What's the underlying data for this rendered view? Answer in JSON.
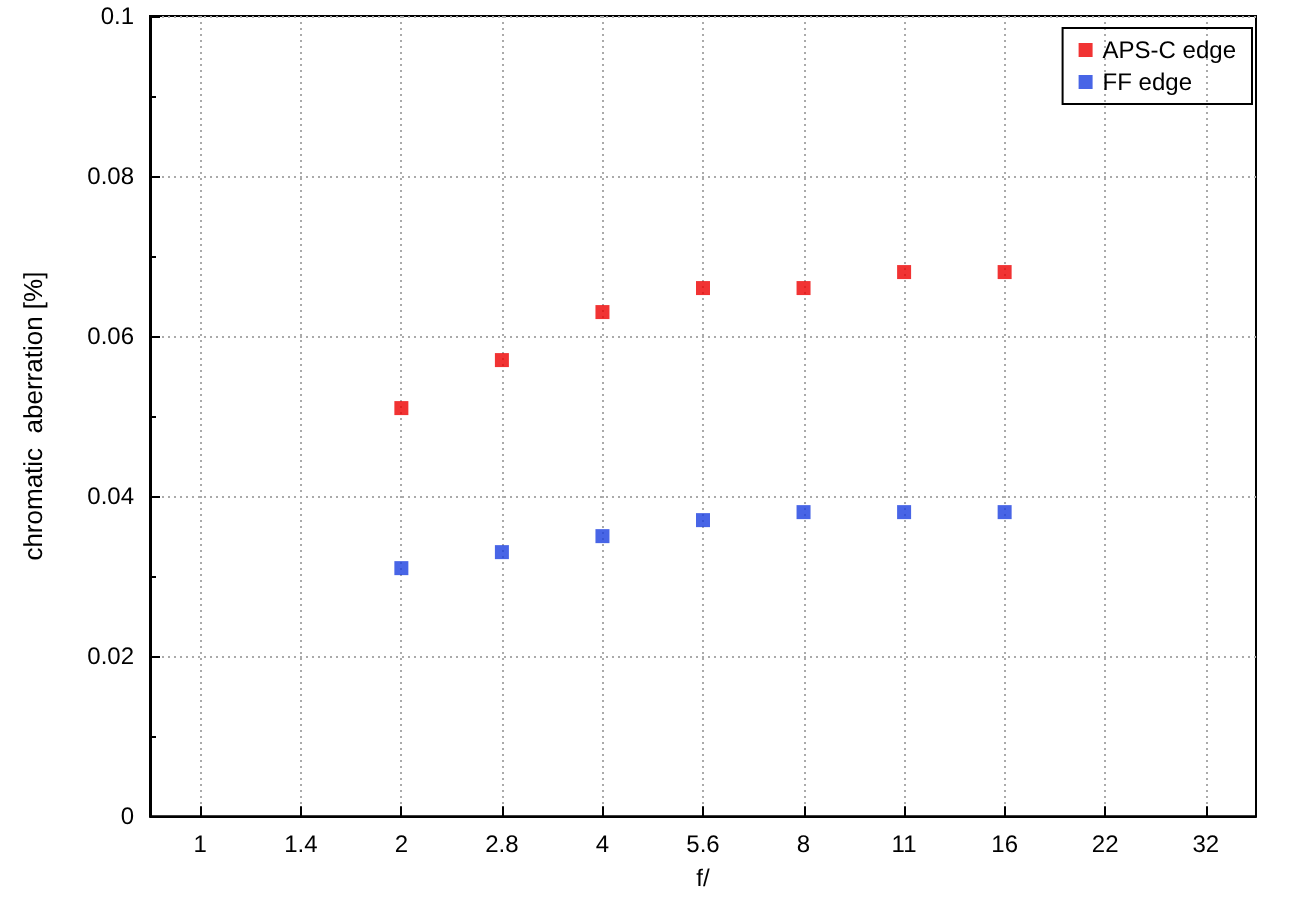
{
  "chart_data": {
    "type": "scatter",
    "xlabel": "f/",
    "ylabel": "chromatic  aberration [%]",
    "categories": [
      "1",
      "1.4",
      "2",
      "2.8",
      "4",
      "5.6",
      "8",
      "11",
      "16",
      "22",
      "32"
    ],
    "series": [
      {
        "name": "APS-C edge",
        "color": "#ee0000",
        "values": [
          null,
          null,
          0.051,
          0.057,
          0.063,
          0.066,
          0.066,
          0.068,
          0.068,
          null,
          null
        ]
      },
      {
        "name": "FF edge",
        "color": "#1a3fe0",
        "values": [
          null,
          null,
          0.031,
          0.033,
          0.035,
          0.037,
          0.038,
          0.038,
          0.038,
          null,
          null
        ]
      }
    ],
    "ylim": [
      0,
      0.1
    ],
    "yticks": [
      0,
      0.02,
      0.04,
      0.06,
      0.08,
      0.1
    ],
    "grid": true,
    "legend": "top right",
    "marker": "square"
  }
}
